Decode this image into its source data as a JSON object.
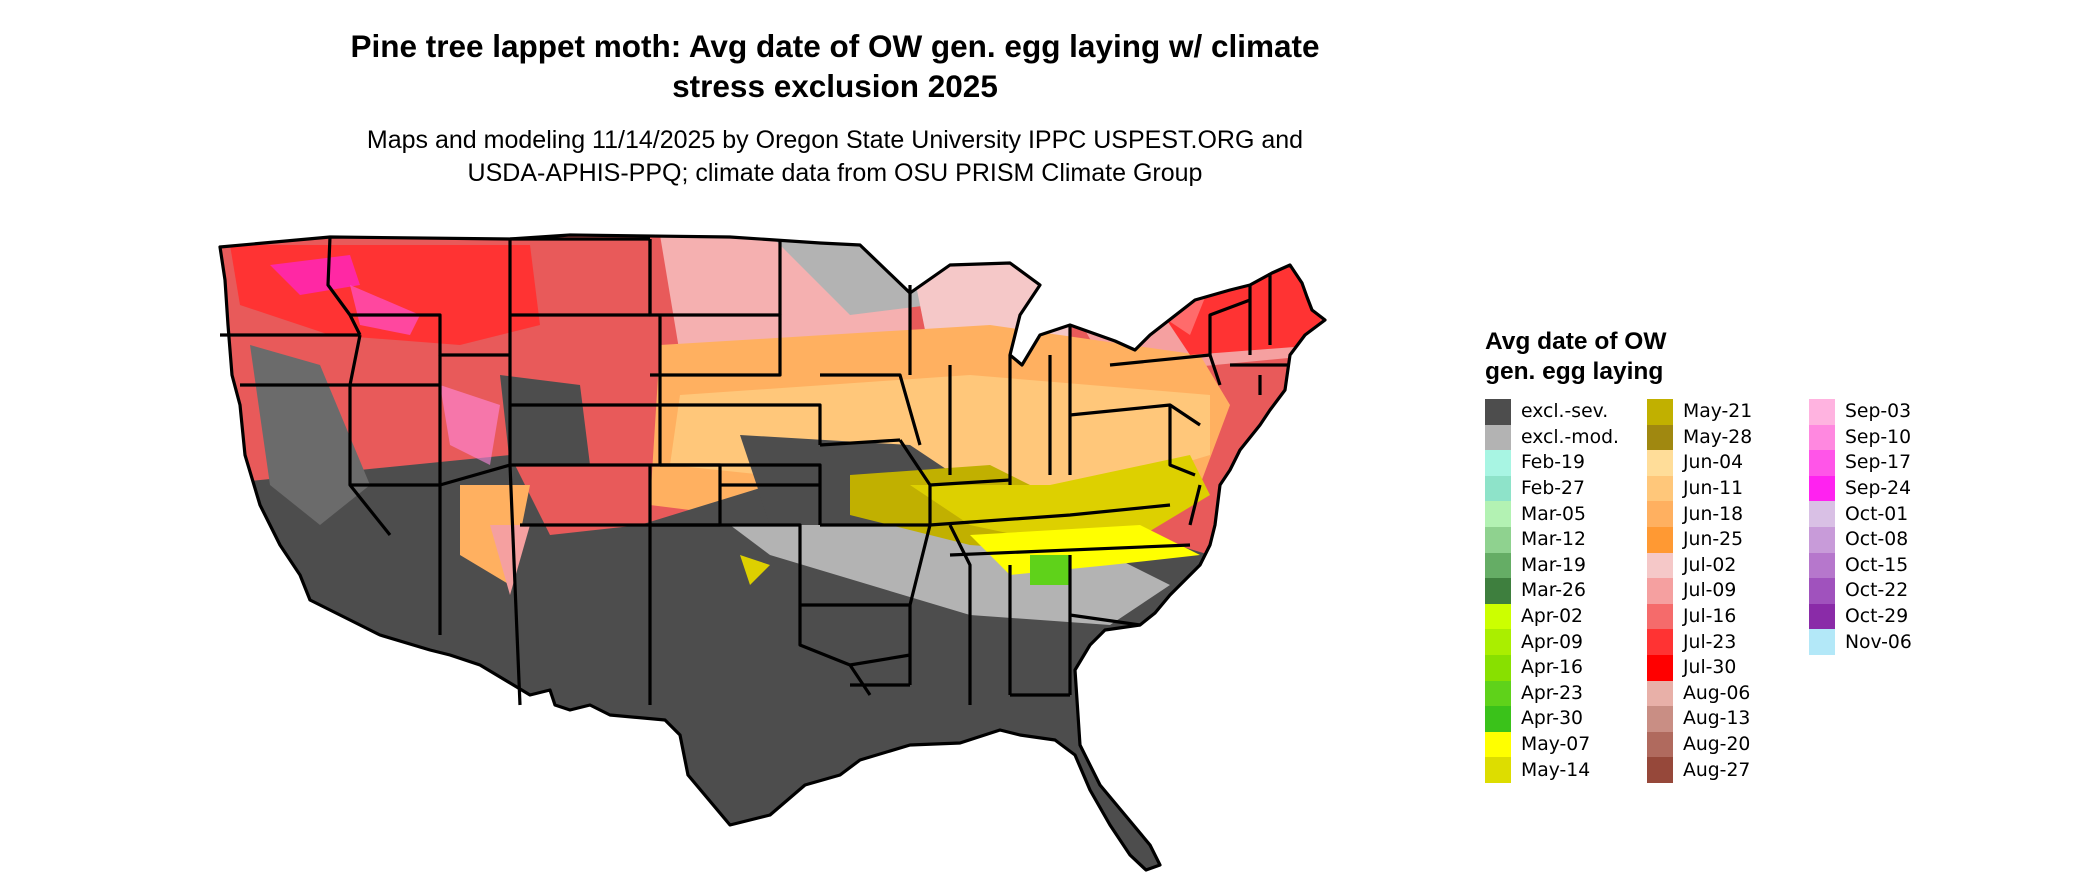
{
  "title_line1": "Pine tree lappet moth: Avg date of OW gen. egg laying w/ climate",
  "title_line2": "stress exclusion 2025",
  "subtitle_line1": "Maps and modeling 11/14/2025 by Oregon State University IPPC USPEST.ORG and",
  "subtitle_line2": "USDA-APHIS-PPQ; climate data from OSU PRISM Climate Group",
  "legend": {
    "title_line1": "Avg date of OW",
    "title_line2": "gen. egg laying",
    "columns": [
      [
        {
          "label": "excl.-sev.",
          "color": "#4d4d4d"
        },
        {
          "label": "excl.-mod.",
          "color": "#b3b3b3"
        },
        {
          "label": "Feb-19",
          "color": "#a8f5e3"
        },
        {
          "label": "Feb-27",
          "color": "#8ee3c9"
        },
        {
          "label": "Mar-05",
          "color": "#b3f2b3"
        },
        {
          "label": "Mar-12",
          "color": "#8fd28f"
        },
        {
          "label": "Mar-19",
          "color": "#65ad65"
        },
        {
          "label": "Mar-26",
          "color": "#3e7f3e"
        },
        {
          "label": "Apr-02",
          "color": "#ccff00"
        },
        {
          "label": "Apr-09",
          "color": "#aaee00"
        },
        {
          "label": "Apr-16",
          "color": "#88e000"
        },
        {
          "label": "Apr-23",
          "color": "#5fd21a"
        },
        {
          "label": "Apr-30",
          "color": "#3ac21a"
        },
        {
          "label": "May-07",
          "color": "#ffff00"
        },
        {
          "label": "May-14",
          "color": "#dddd00"
        }
      ],
      [
        {
          "label": "May-21",
          "color": "#c1b000"
        },
        {
          "label": "May-28",
          "color": "#a08810"
        },
        {
          "label": "Jun-04",
          "color": "#ffdd99"
        },
        {
          "label": "Jun-11",
          "color": "#ffc77a"
        },
        {
          "label": "Jun-18",
          "color": "#ffb060"
        },
        {
          "label": "Jun-25",
          "color": "#ff9933"
        },
        {
          "label": "Jul-02",
          "color": "#f5c8c8"
        },
        {
          "label": "Jul-09",
          "color": "#f5a0a0"
        },
        {
          "label": "Jul-16",
          "color": "#f56b6b"
        },
        {
          "label": "Jul-23",
          "color": "#ff3333"
        },
        {
          "label": "Jul-30",
          "color": "#ff0000"
        },
        {
          "label": "Aug-06",
          "color": "#e8b0a8"
        },
        {
          "label": "Aug-13",
          "color": "#c98e84"
        },
        {
          "label": "Aug-20",
          "color": "#b06a5e"
        },
        {
          "label": "Aug-27",
          "color": "#96483a"
        }
      ],
      [
        {
          "label": "Sep-03",
          "color": "#ffb3e0"
        },
        {
          "label": "Sep-10",
          "color": "#ff88e0"
        },
        {
          "label": "Sep-17",
          "color": "#ff55e8"
        },
        {
          "label": "Sep-24",
          "color": "#ff22f0"
        },
        {
          "label": "Oct-01",
          "color": "#d9c0e5"
        },
        {
          "label": "Oct-08",
          "color": "#c89bd9"
        },
        {
          "label": "Oct-15",
          "color": "#b677cc"
        },
        {
          "label": "Oct-22",
          "color": "#a052bd"
        },
        {
          "label": "Oct-29",
          "color": "#8a2ba8"
        },
        {
          "label": "Nov-06",
          "color": "#b3e8f8"
        }
      ]
    ]
  }
}
